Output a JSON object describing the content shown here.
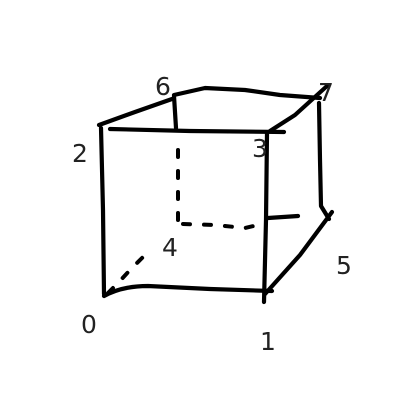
{
  "diagram": {
    "vertices": [
      {
        "id": "v0",
        "label": "0"
      },
      {
        "id": "v1",
        "label": "1"
      },
      {
        "id": "v2",
        "label": "2"
      },
      {
        "id": "v3",
        "label": "3"
      },
      {
        "id": "v4",
        "label": "4"
      },
      {
        "id": "v5",
        "label": "5"
      },
      {
        "id": "v6",
        "label": "6"
      },
      {
        "id": "v7",
        "label": "7"
      }
    ],
    "edges": [
      {
        "from": "0",
        "to": "1",
        "style": "solid"
      },
      {
        "from": "0",
        "to": "2",
        "style": "solid"
      },
      {
        "from": "1",
        "to": "3",
        "style": "solid"
      },
      {
        "from": "2",
        "to": "3",
        "style": "solid"
      },
      {
        "from": "2",
        "to": "6",
        "style": "solid"
      },
      {
        "from": "3",
        "to": "7",
        "style": "solid"
      },
      {
        "from": "6",
        "to": "7",
        "style": "solid"
      },
      {
        "from": "7",
        "to": "5",
        "style": "solid"
      },
      {
        "from": "1",
        "to": "5",
        "style": "solid"
      },
      {
        "from": "0",
        "to": "4",
        "style": "dashed"
      },
      {
        "from": "4",
        "to": "6",
        "style": "dashed"
      },
      {
        "from": "4",
        "to": "5",
        "style": "dashed"
      }
    ],
    "line_color": "#000000",
    "label_color": "#222222",
    "background": "#ffffff"
  }
}
